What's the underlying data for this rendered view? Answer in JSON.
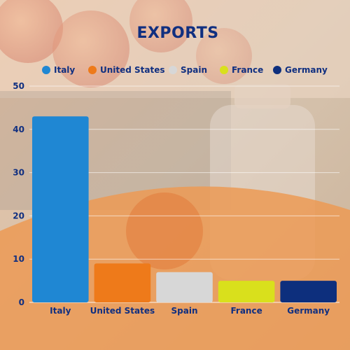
{
  "chart_data": {
    "type": "bar",
    "title": "EXPORTS",
    "categories": [
      "Italy",
      "United States",
      "Spain",
      "France",
      "Germany"
    ],
    "values": [
      43,
      9,
      7,
      5,
      5
    ],
    "colors": [
      "#1f87d3",
      "#ee7a1a",
      "#d7d7d7",
      "#d9e01c",
      "#0d2f7d"
    ],
    "legend": [
      "Italy",
      "United States",
      "Spain",
      "France",
      "Germany"
    ],
    "legend_position": "top",
    "ylim": [
      0,
      50
    ],
    "yticks": [
      0,
      10,
      20,
      30,
      40,
      50
    ],
    "grid": true,
    "xlabel": "",
    "ylabel": ""
  }
}
